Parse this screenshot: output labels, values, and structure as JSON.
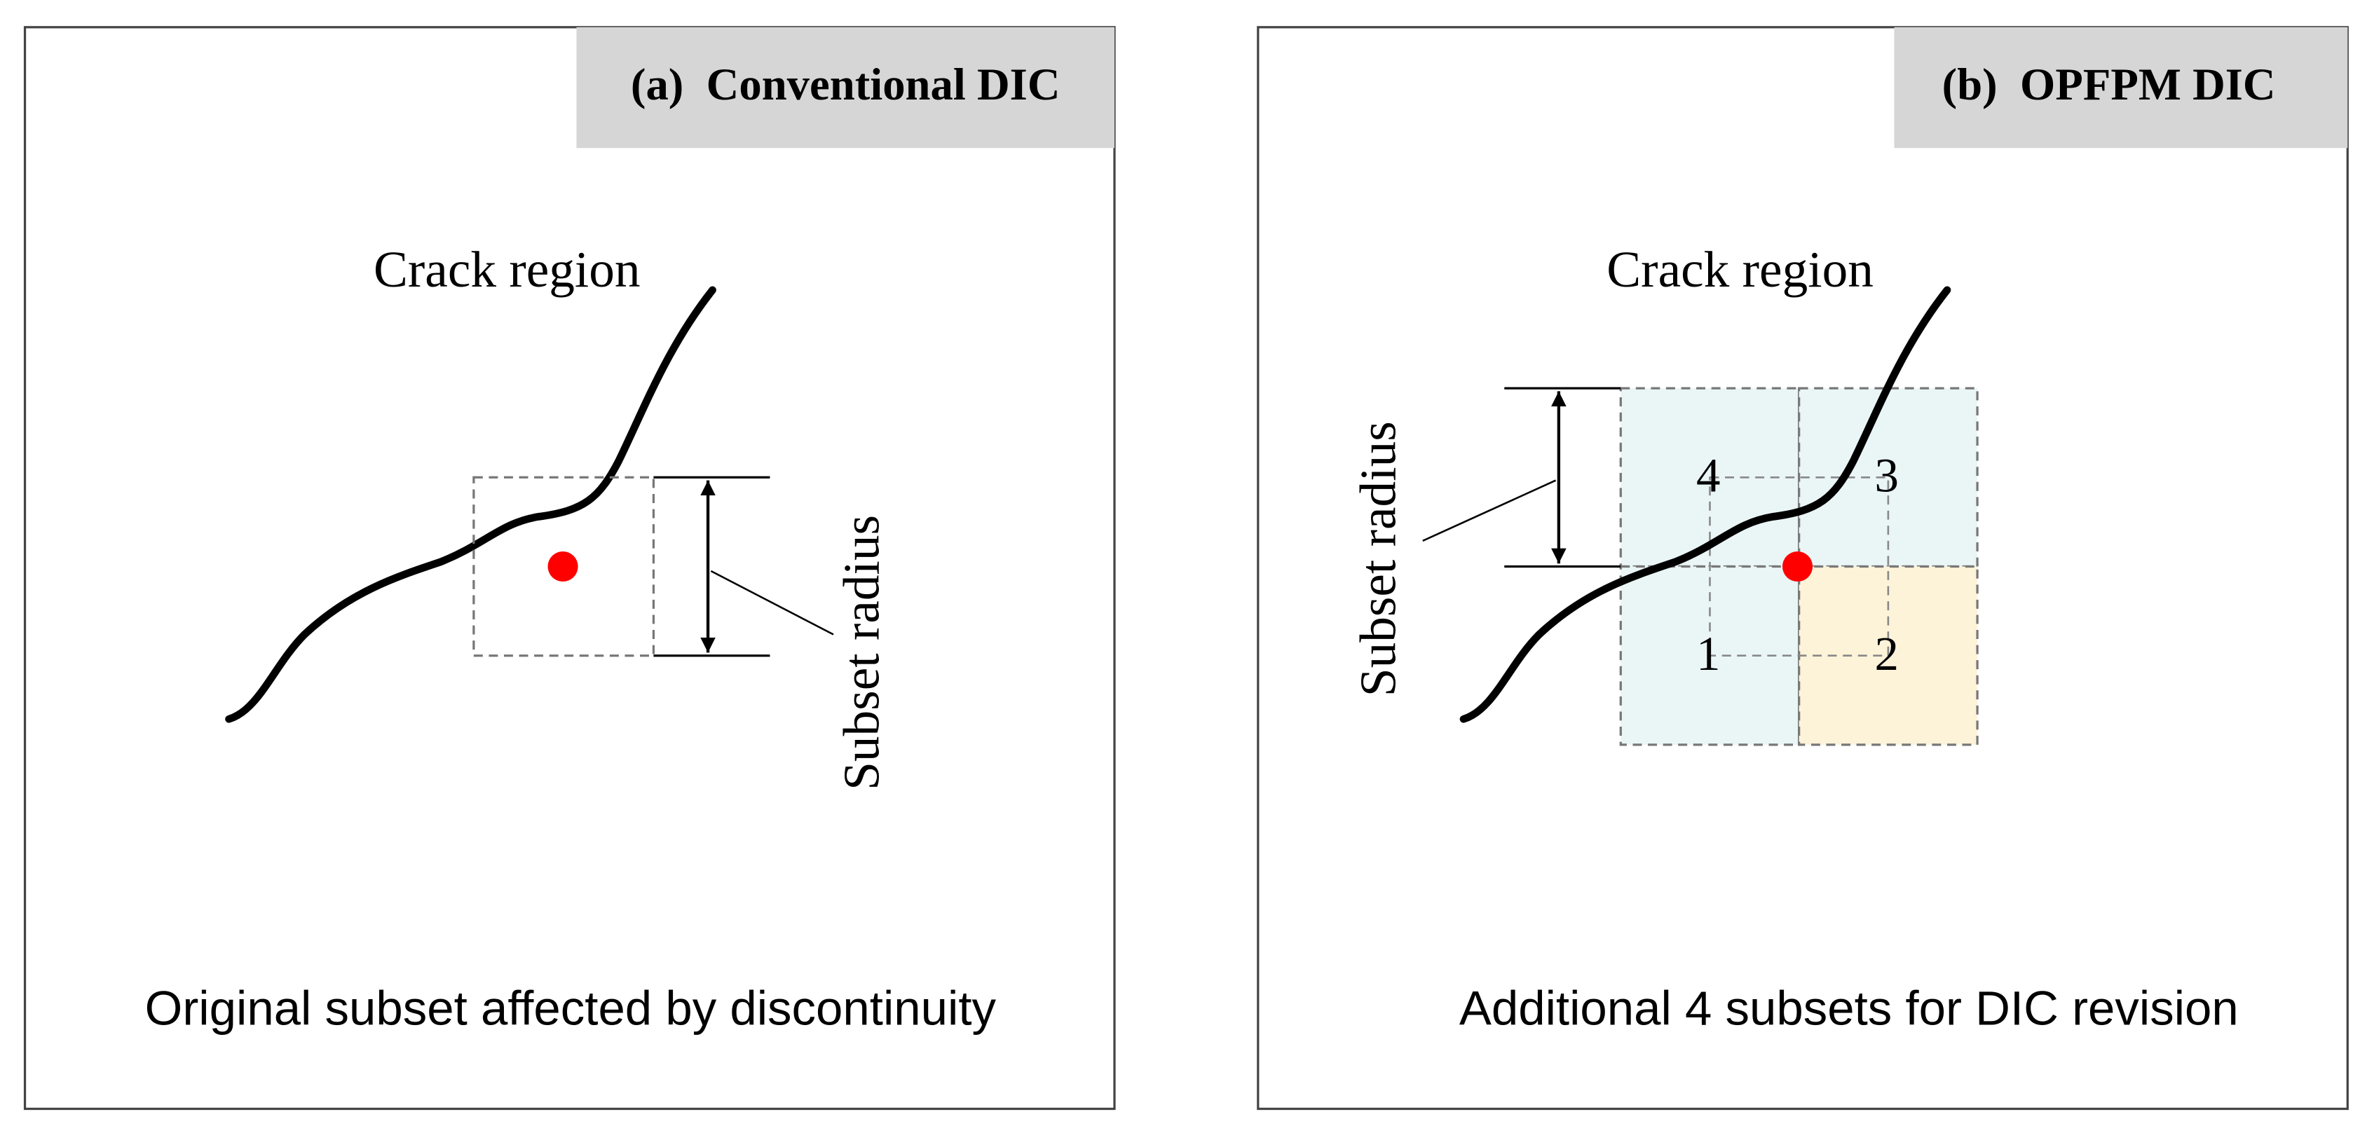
{
  "panels": [
    {
      "title": "(a)  Conventional DIC",
      "crack_label": "Crack region",
      "radius_label": "Subset radius",
      "caption": "Original subset affected by discontinuity"
    },
    {
      "title": "(b)  OPFPM DIC",
      "crack_label": "Crack region",
      "radius_label": "Subset radius",
      "subset_numbers": [
        "4",
        "3",
        "1",
        "2"
      ],
      "caption": "Additional 4 subsets for DIC revision"
    }
  ]
}
